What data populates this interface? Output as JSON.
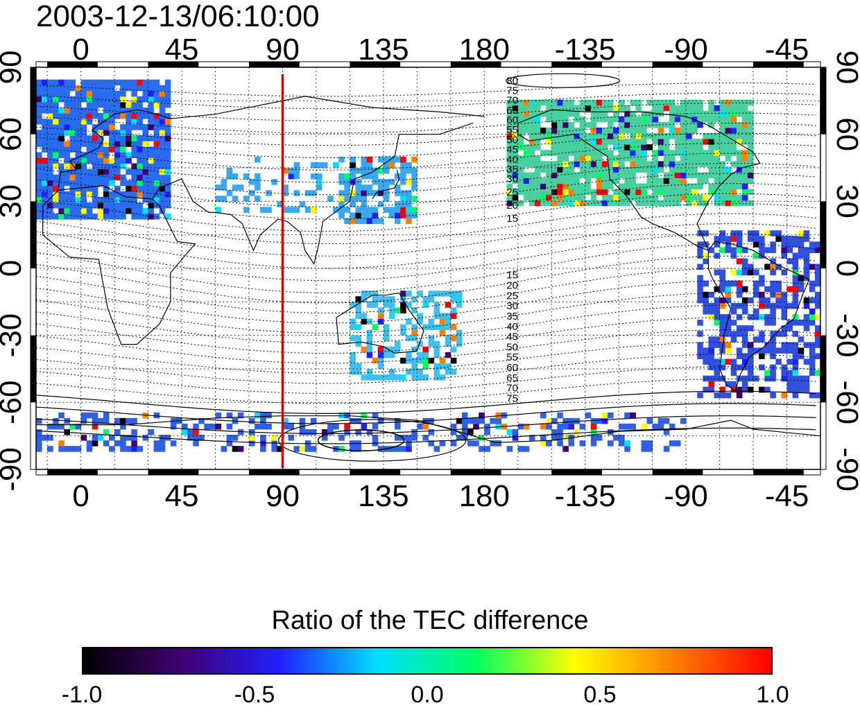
{
  "title": "2003-12-13/06:10:00",
  "map": {
    "projection": "cylindrical-equidistant",
    "lon_range": [
      -20,
      330
    ],
    "lat_range": [
      -90,
      90
    ],
    "top_lon_ticks": [
      "0",
      "45",
      "90",
      "135",
      "180",
      "-135",
      "-90",
      "-45"
    ],
    "bottom_lon_ticks": [
      "0",
      "45",
      "90",
      "135",
      "180",
      "-135",
      "-90",
      "-45"
    ],
    "left_lat_ticks": [
      "90",
      "60",
      "30",
      "0",
      "-30",
      "-60",
      "-90"
    ],
    "right_lat_ticks": [
      "90",
      "60",
      "30",
      "0",
      "-30",
      "-60",
      "-90"
    ],
    "grid": "dotted, every 15 degrees",
    "marker_line": {
      "longitude": 90,
      "color": "#e00000"
    },
    "magnetic_contour_labels_north": [
      "80",
      "75",
      "70",
      "65",
      "60",
      "55",
      "50",
      "45",
      "40",
      "35",
      "30",
      "25",
      "20",
      "15"
    ],
    "magnetic_contour_labels_south": [
      "15",
      "20",
      "25",
      "30",
      "35",
      "40",
      "45",
      "50",
      "55",
      "60",
      "65",
      "70",
      "75"
    ],
    "data_regions": [
      {
        "name": "europe",
        "color": "#2a6cf0"
      },
      {
        "name": "north-america",
        "color": "#4ad0a0"
      },
      {
        "name": "japan",
        "color": "#3aa8f0"
      },
      {
        "name": "south-america",
        "color": "#3050e0"
      },
      {
        "name": "australia",
        "color": "#40c0f0"
      },
      {
        "name": "antarctica",
        "color": "#3060e8"
      }
    ]
  },
  "colorbar": {
    "title": "Ratio of the TEC difference",
    "min": -1.0,
    "max": 1.0,
    "tick_labels": [
      "-1.0",
      "-0.5",
      "0.0",
      "0.5",
      "1.0"
    ],
    "colormap": [
      "#000000",
      "#400070",
      "#2020ff",
      "#00e0ff",
      "#00ff60",
      "#ffff00",
      "#ff8000",
      "#ff0000"
    ]
  }
}
